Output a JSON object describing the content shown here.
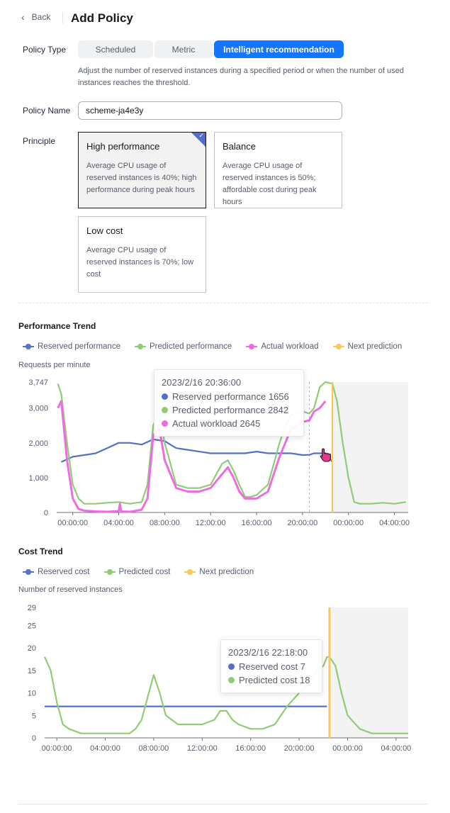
{
  "header": {
    "back_label": "Back",
    "title": "Add Policy"
  },
  "form": {
    "policy_type": {
      "label": "Policy Type",
      "options": [
        "Scheduled",
        "Metric",
        "Intelligent recommendation"
      ],
      "selected": "Intelligent recommendation",
      "description": "Adjust the number of reserved instances during a specified period or when the number of used instances reaches the threshold."
    },
    "policy_name": {
      "label": "Policy Name",
      "value": "scheme-ja4e3y"
    },
    "principle": {
      "label": "Principle",
      "cards": [
        {
          "title": "High performance",
          "desc": "Average CPU usage of reserved instances is 40%; high performance during peak hours",
          "selected": true
        },
        {
          "title": "Balance",
          "desc": "Average CPU usage of reserved instances is 50%; affordable cost during peak hours",
          "selected": false
        },
        {
          "title": "Low cost",
          "desc": "Average CPU usage of reserved instances is 70%; low cost",
          "selected": false
        }
      ]
    }
  },
  "colors": {
    "reserved": "#5470c6",
    "predicted": "#91cc75",
    "actual": "#ee6ce0",
    "next": "#fac858",
    "accent": "#1476ff"
  },
  "performance_trend": {
    "title": "Performance Trend",
    "legend": [
      "Reserved performance",
      "Predicted performance",
      "Actual workload",
      "Next prediction"
    ],
    "y_title": "Requests per minute",
    "tooltip": {
      "time": "2023/2/16 20:36:00",
      "rows": [
        {
          "label": "Reserved performance 1656",
          "color": "#5470c6"
        },
        {
          "label": "Predicted performance 2842",
          "color": "#91cc75"
        },
        {
          "label": "Actual workload 2645",
          "color": "#ee6ce0"
        }
      ]
    }
  },
  "cost_trend": {
    "title": "Cost Trend",
    "legend": [
      "Reserved cost",
      "Predicted cost",
      "Next prediction"
    ],
    "y_title": "Number of reserved instances",
    "tooltip": {
      "time": "2023/2/16 22:18:00",
      "rows": [
        {
          "label": "Reserved cost 7",
          "color": "#5470c6"
        },
        {
          "label": "Predicted cost 18",
          "color": "#91cc75"
        }
      ]
    }
  },
  "chart_data": [
    {
      "type": "line",
      "title": "Performance Trend",
      "ylabel": "Requests per minute",
      "xlabel": "",
      "x_ticks": [
        "00:00:00",
        "04:00:00",
        "08:00:00",
        "12:00:00",
        "16:00:00",
        "20:00:00",
        "00:00:00",
        "04:00:00"
      ],
      "y_ticks": [
        "0",
        "1,000",
        "2,000",
        "3,000",
        "3,747"
      ],
      "ylim": [
        0,
        3747
      ],
      "x_hours_range": [
        -1.4,
        29.2
      ],
      "next_prediction_hour": 22.6,
      "grid": false,
      "legend_placement": "top-left",
      "series": [
        {
          "name": "Reserved performance",
          "x": [
            -1,
            0,
            1,
            2,
            3,
            4,
            5,
            6,
            7,
            8,
            9,
            10,
            11,
            12,
            13,
            14,
            15,
            16,
            17,
            18,
            19,
            20,
            20.6,
            21,
            22,
            22.6
          ],
          "y": [
            1450,
            1600,
            1650,
            1700,
            1850,
            2000,
            2000,
            1950,
            2100,
            2050,
            1850,
            1800,
            1750,
            1700,
            1700,
            1700,
            1700,
            1750,
            1700,
            1700,
            1700,
            1650,
            1656,
            1700,
            1700,
            1450
          ]
        },
        {
          "name": "Predicted performance",
          "x": [
            -1.3,
            -1,
            -0.5,
            0,
            0.5,
            1,
            2,
            3,
            4,
            5,
            6,
            6.5,
            7,
            7.5,
            8,
            9,
            10,
            11,
            12,
            13,
            13.5,
            14,
            14.5,
            15,
            15.5,
            16,
            17,
            18,
            18.5,
            19,
            20,
            20.6,
            21,
            21.5,
            22,
            22.6,
            23,
            23.5,
            24,
            24.5,
            25,
            26,
            27,
            28,
            29
          ],
          "y": [
            3700,
            3400,
            2000,
            800,
            400,
            250,
            250,
            280,
            300,
            250,
            300,
            800,
            2500,
            2900,
            2000,
            800,
            700,
            700,
            800,
            1400,
            1500,
            1200,
            800,
            450,
            450,
            500,
            800,
            2000,
            2500,
            2800,
            2900,
            2842,
            3000,
            3600,
            3750,
            3700,
            3200,
            2000,
            1000,
            300,
            250,
            250,
            280,
            250,
            300
          ]
        },
        {
          "name": "Actual workload",
          "x": [
            -1.3,
            -1,
            -0.5,
            0,
            0.5,
            1,
            2,
            3,
            4,
            4.1,
            4.2,
            5,
            6,
            6.5,
            7,
            7.5,
            8,
            9,
            10,
            11,
            12,
            13,
            13.5,
            14,
            14.5,
            15,
            16,
            17,
            18,
            18.5,
            19,
            20,
            20.6,
            21,
            21.5,
            22
          ],
          "y": [
            3000,
            3200,
            1500,
            400,
            100,
            50,
            30,
            20,
            40,
            250,
            30,
            20,
            80,
            400,
            2200,
            2500,
            1500,
            700,
            600,
            600,
            700,
            1100,
            1300,
            1000,
            600,
            400,
            400,
            600,
            1600,
            2000,
            2400,
            2600,
            2645,
            2900,
            3000,
            3200
          ]
        },
        {
          "name": "Next prediction",
          "x": [
            22.6,
            22.6
          ],
          "y": [
            0,
            3747
          ]
        }
      ]
    },
    {
      "type": "line",
      "title": "Cost Trend",
      "ylabel": "Number of reserved instances",
      "xlabel": "",
      "x_ticks": [
        "00:00:00",
        "04:00:00",
        "08:00:00",
        "12:00:00",
        "16:00:00",
        "20:00:00",
        "00:00:00",
        "04:00:00"
      ],
      "y_ticks": [
        "0",
        "5",
        "10",
        "15",
        "20",
        "25",
        "29"
      ],
      "ylim": [
        0,
        29
      ],
      "x_hours_range": [
        -1.0,
        29.0
      ],
      "next_prediction_hour": 22.5,
      "grid": false,
      "legend_placement": "top-left",
      "series": [
        {
          "name": "Reserved cost",
          "x": [
            -1,
            22.3
          ],
          "y": [
            7,
            7
          ]
        },
        {
          "name": "Predicted cost",
          "x": [
            -1,
            -0.5,
            0,
            0.5,
            1,
            2,
            3,
            4,
            5,
            6,
            6.5,
            7,
            7.5,
            8,
            8.5,
            9,
            10,
            11,
            12,
            13,
            13.5,
            14,
            14.5,
            15,
            16,
            17,
            18,
            19,
            20,
            21,
            21.5,
            22,
            22.3,
            22.5,
            23,
            23.5,
            24,
            25,
            26,
            27,
            28,
            29
          ],
          "y": [
            18,
            15,
            8,
            3,
            2,
            1,
            1,
            1,
            1,
            1,
            2,
            4,
            9,
            14,
            10,
            5,
            3,
            3,
            3,
            4,
            6,
            6,
            4,
            3,
            2,
            2,
            3,
            7,
            10,
            13,
            15,
            16,
            18,
            18,
            16,
            10,
            5,
            2,
            1,
            1,
            1,
            1
          ]
        },
        {
          "name": "Next prediction",
          "x": [
            22.5,
            22.5
          ],
          "y": [
            0,
            29
          ]
        }
      ]
    }
  ]
}
